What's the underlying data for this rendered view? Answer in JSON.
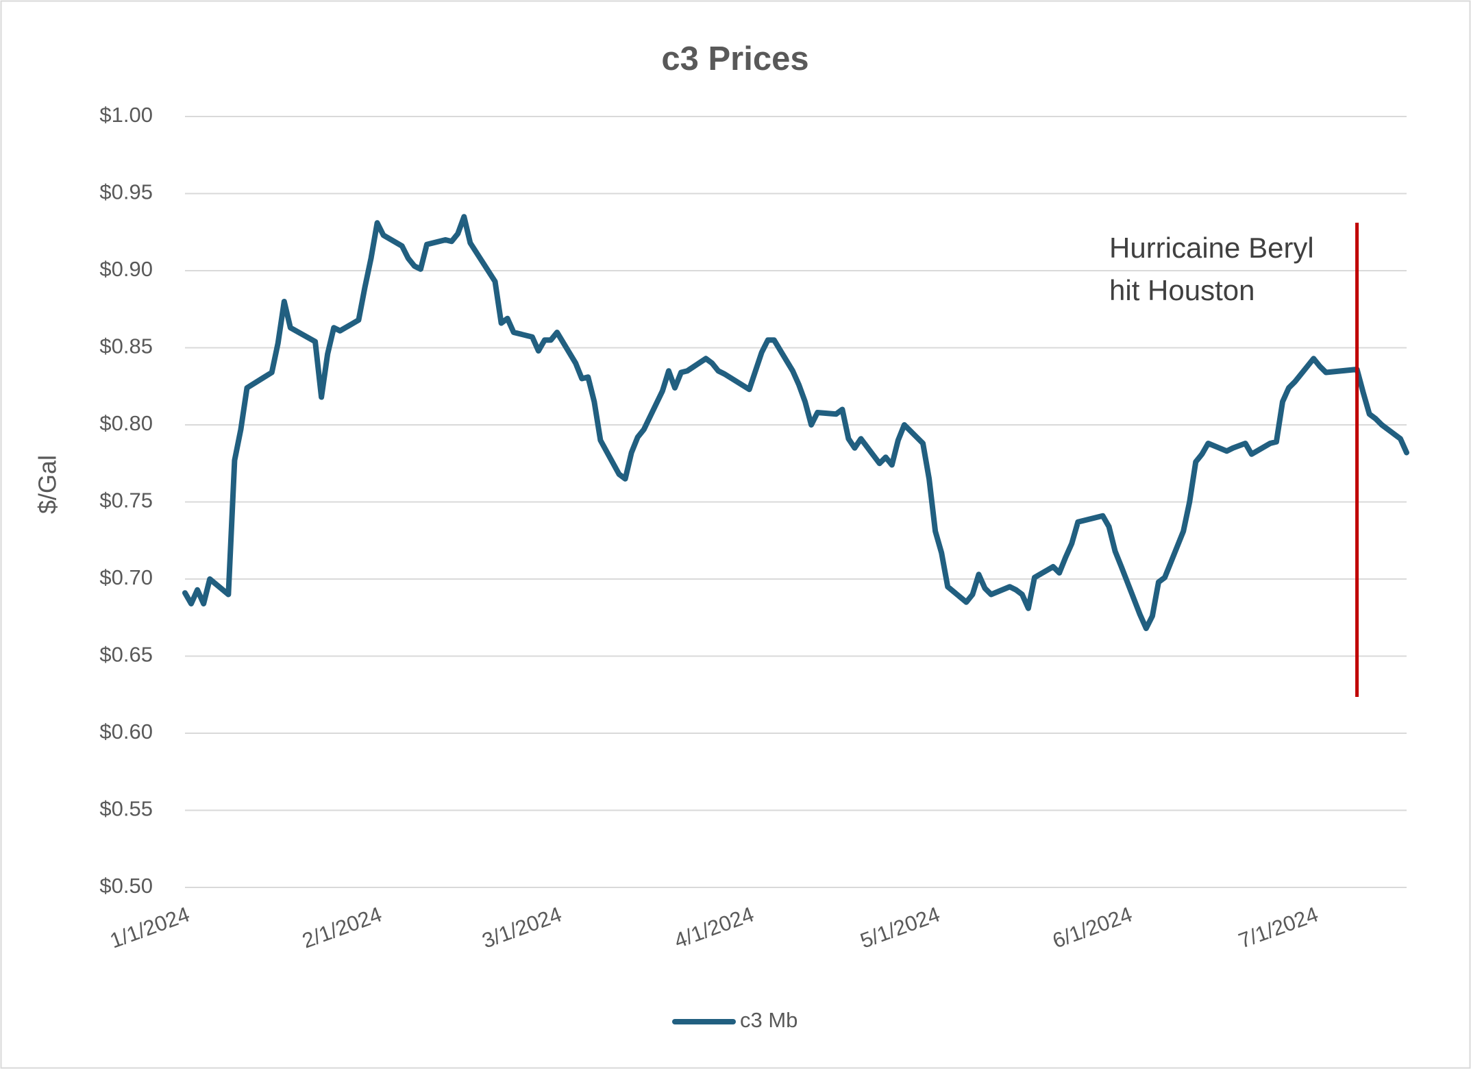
{
  "chart_data": {
    "type": "line",
    "title": "c3 Prices",
    "y_label": "$/Gal",
    "xlim": [
      "1/1/2024",
      "7/16/2024"
    ],
    "xticks": [
      "1/1/2024",
      "2/1/2024",
      "3/1/2024",
      "4/1/2024",
      "5/1/2024",
      "6/1/2024",
      "7/1/2024"
    ],
    "ylim": [
      0.5,
      1.0
    ],
    "yticks": [
      {
        "value": 0.5,
        "label": "$0.50"
      },
      {
        "value": 0.55,
        "label": "$0.55"
      },
      {
        "value": 0.6,
        "label": "$0.60"
      },
      {
        "value": 0.65,
        "label": "$0.65"
      },
      {
        "value": 0.7,
        "label": "$0.70"
      },
      {
        "value": 0.75,
        "label": "$0.75"
      },
      {
        "value": 0.8,
        "label": "$0.80"
      },
      {
        "value": 0.85,
        "label": "$0.85"
      },
      {
        "value": 0.9,
        "label": "$0.90"
      },
      {
        "value": 0.95,
        "label": "$0.95"
      },
      {
        "value": 1.0,
        "label": "$1.00"
      }
    ],
    "grid": true,
    "legend": "bottom",
    "x": [
      "1/1/2024",
      "1/2/2024",
      "1/3/2024",
      "1/4/2024",
      "1/5/2024",
      "1/8/2024",
      "1/9/2024",
      "1/10/2024",
      "1/11/2024",
      "1/15/2024",
      "1/16/2024",
      "1/17/2024",
      "1/18/2024",
      "1/22/2024",
      "1/23/2024",
      "1/24/2024",
      "1/25/2024",
      "1/26/2024",
      "1/29/2024",
      "1/30/2024",
      "1/31/2024",
      "2/1/2024",
      "2/2/2024",
      "2/5/2024",
      "2/6/2024",
      "2/7/2024",
      "2/8/2024",
      "2/9/2024",
      "2/12/2024",
      "2/13/2024",
      "2/14/2024",
      "2/15/2024",
      "2/16/2024",
      "2/20/2024",
      "2/21/2024",
      "2/22/2024",
      "2/23/2024",
      "2/26/2024",
      "2/27/2024",
      "2/28/2024",
      "2/29/2024",
      "3/1/2024",
      "3/4/2024",
      "3/5/2024",
      "3/6/2024",
      "3/7/2024",
      "3/8/2024",
      "3/11/2024",
      "3/12/2024",
      "3/13/2024",
      "3/14/2024",
      "3/15/2024",
      "3/18/2024",
      "3/19/2024",
      "3/20/2024",
      "3/21/2024",
      "3/22/2024",
      "3/25/2024",
      "3/26/2024",
      "3/27/2024",
      "3/28/2024",
      "4/1/2024",
      "4/2/2024",
      "4/3/2024",
      "4/4/2024",
      "4/5/2024",
      "4/8/2024",
      "4/9/2024",
      "4/10/2024",
      "4/11/2024",
      "4/12/2024",
      "4/15/2024",
      "4/16/2024",
      "4/17/2024",
      "4/18/2024",
      "4/19/2024",
      "4/22/2024",
      "4/23/2024",
      "4/24/2024",
      "4/25/2024",
      "4/26/2024",
      "4/29/2024",
      "4/30/2024",
      "5/1/2024",
      "5/2/2024",
      "5/3/2024",
      "5/6/2024",
      "5/7/2024",
      "5/8/2024",
      "5/9/2024",
      "5/10/2024",
      "5/13/2024",
      "5/14/2024",
      "5/15/2024",
      "5/16/2024",
      "5/17/2024",
      "5/20/2024",
      "5/21/2024",
      "5/22/2024",
      "5/23/2024",
      "5/24/2024",
      "5/28/2024",
      "5/29/2024",
      "5/30/2024",
      "5/31/2024",
      "6/3/2024",
      "6/4/2024",
      "6/5/2024",
      "6/6/2024",
      "6/7/2024",
      "6/10/2024",
      "6/11/2024",
      "6/12/2024",
      "6/13/2024",
      "6/14/2024",
      "6/17/2024",
      "6/18/2024",
      "6/20/2024",
      "6/21/2024",
      "6/24/2024",
      "6/25/2024",
      "6/26/2024",
      "6/27/2024",
      "6/28/2024",
      "7/1/2024",
      "7/2/2024",
      "7/3/2024",
      "7/8/2024",
      "7/9/2024",
      "7/10/2024",
      "7/11/2024",
      "7/12/2024",
      "7/15/2024",
      "7/16/2024"
    ],
    "series": [
      {
        "name": "c3 Mb",
        "color": "#215f80",
        "values": [
          0.691,
          0.684,
          0.693,
          0.684,
          0.7,
          0.69,
          0.777,
          0.797,
          0.824,
          0.834,
          0.853,
          0.88,
          0.863,
          0.854,
          0.818,
          0.846,
          0.863,
          0.861,
          0.868,
          0.889,
          0.908,
          0.931,
          0.923,
          0.916,
          0.908,
          0.903,
          0.901,
          0.917,
          0.92,
          0.919,
          0.924,
          0.935,
          0.918,
          0.893,
          0.866,
          0.869,
          0.86,
          0.857,
          0.848,
          0.855,
          0.855,
          0.86,
          0.84,
          0.83,
          0.831,
          0.815,
          0.79,
          0.768,
          0.765,
          0.782,
          0.792,
          0.797,
          0.822,
          0.835,
          0.824,
          0.834,
          0.835,
          0.843,
          0.84,
          0.835,
          0.833,
          0.823,
          0.835,
          0.847,
          0.855,
          0.855,
          0.835,
          0.826,
          0.815,
          0.8,
          0.808,
          0.807,
          0.81,
          0.791,
          0.785,
          0.791,
          0.775,
          0.779,
          0.774,
          0.79,
          0.8,
          0.788,
          0.765,
          0.731,
          0.717,
          0.695,
          0.685,
          0.69,
          0.703,
          0.694,
          0.69,
          0.695,
          0.693,
          0.69,
          0.681,
          0.701,
          0.708,
          0.704,
          0.714,
          0.723,
          0.737,
          0.741,
          0.734,
          0.718,
          0.708,
          0.677,
          0.668,
          0.676,
          0.698,
          0.701,
          0.731,
          0.75,
          0.776,
          0.781,
          0.788,
          0.783,
          0.785,
          0.788,
          0.781,
          0.788,
          0.789,
          0.815,
          0.824,
          0.828,
          0.843,
          0.838,
          0.834,
          0.836,
          0.821,
          0.807,
          0.804,
          0.8,
          0.791,
          0.782
        ]
      }
    ],
    "annotation": {
      "text": [
        "Hurricaine Beryl",
        "hit Houston"
      ],
      "x": "7/8/2024",
      "color": "#c00000"
    }
  }
}
